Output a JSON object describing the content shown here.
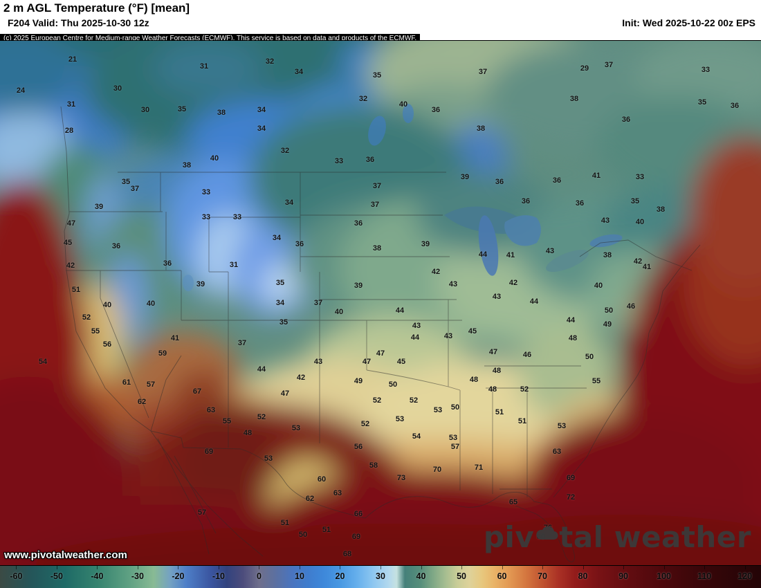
{
  "header": {
    "title": "2 m AGL Temperature (°F) [mean]",
    "valid": "F204 Valid: Thu 2025-10-30 12z",
    "init": "Init: Wed 2025-10-22 00z EPS"
  },
  "copyright": "(c) 2025 European Centre for Medium-range Weather Forecasts (ECMWF). This service is based on data and products of the ECMWF.",
  "watermark": "www.pivotalweather.com",
  "logo": {
    "pre": "piv",
    "post": "tal weather"
  },
  "map": {
    "labels": [
      [
        21,
        105,
        27
      ],
      [
        31,
        295,
        37
      ],
      [
        32,
        390,
        30
      ],
      [
        34,
        432,
        45
      ],
      [
        35,
        545,
        50
      ],
      [
        37,
        698,
        45
      ],
      [
        29,
        845,
        40
      ],
      [
        37,
        880,
        35
      ],
      [
        33,
        1020,
        42
      ],
      [
        24,
        30,
        72
      ],
      [
        30,
        170,
        69
      ],
      [
        31,
        103,
        92
      ],
      [
        30,
        210,
        100
      ],
      [
        35,
        263,
        99
      ],
      [
        38,
        320,
        104
      ],
      [
        34,
        378,
        100
      ],
      [
        32,
        525,
        84
      ],
      [
        40,
        583,
        92
      ],
      [
        36,
        630,
        100
      ],
      [
        38,
        830,
        84
      ],
      [
        35,
        1015,
        89
      ],
      [
        36,
        1062,
        94
      ],
      [
        28,
        100,
        130
      ],
      [
        34,
        378,
        127
      ],
      [
        38,
        695,
        127
      ],
      [
        36,
        905,
        114
      ],
      [
        32,
        412,
        159
      ],
      [
        40,
        310,
        170
      ],
      [
        38,
        270,
        180
      ],
      [
        33,
        490,
        174
      ],
      [
        36,
        535,
        172
      ],
      [
        37,
        545,
        210
      ],
      [
        39,
        672,
        197
      ],
      [
        36,
        722,
        204
      ],
      [
        36,
        805,
        202
      ],
      [
        41,
        862,
        195
      ],
      [
        33,
        925,
        197
      ],
      [
        35,
        182,
        204
      ],
      [
        37,
        195,
        214
      ],
      [
        33,
        298,
        219
      ],
      [
        39,
        143,
        240
      ],
      [
        34,
        418,
        234
      ],
      [
        37,
        542,
        237
      ],
      [
        36,
        760,
        232
      ],
      [
        36,
        838,
        235
      ],
      [
        35,
        918,
        232
      ],
      [
        38,
        955,
        244
      ],
      [
        47,
        103,
        264
      ],
      [
        33,
        298,
        255
      ],
      [
        33,
        343,
        255
      ],
      [
        36,
        518,
        264
      ],
      [
        43,
        875,
        260
      ],
      [
        40,
        925,
        262
      ],
      [
        45,
        98,
        292
      ],
      [
        36,
        168,
        297
      ],
      [
        34,
        400,
        285
      ],
      [
        36,
        433,
        294
      ],
      [
        38,
        545,
        300
      ],
      [
        39,
        615,
        294
      ],
      [
        44,
        698,
        309
      ],
      [
        41,
        738,
        310
      ],
      [
        43,
        795,
        304
      ],
      [
        38,
        878,
        310
      ],
      [
        42,
        922,
        319
      ],
      [
        42,
        102,
        325
      ],
      [
        36,
        242,
        322
      ],
      [
        31,
        338,
        324
      ],
      [
        42,
        630,
        334
      ],
      [
        43,
        655,
        352
      ],
      [
        42,
        742,
        350
      ],
      [
        39,
        290,
        352
      ],
      [
        35,
        405,
        350
      ],
      [
        39,
        518,
        354
      ],
      [
        43,
        718,
        370
      ],
      [
        44,
        772,
        377
      ],
      [
        40,
        865,
        354
      ],
      [
        41,
        935,
        327
      ],
      [
        51,
        110,
        360
      ],
      [
        40,
        155,
        382
      ],
      [
        40,
        218,
        380
      ],
      [
        34,
        405,
        379
      ],
      [
        37,
        460,
        379
      ],
      [
        52,
        125,
        400
      ],
      [
        44,
        578,
        390
      ],
      [
        43,
        602,
        412
      ],
      [
        35,
        410,
        407
      ],
      [
        40,
        490,
        392
      ],
      [
        50,
        880,
        390
      ],
      [
        46,
        912,
        384
      ],
      [
        49,
        878,
        410
      ],
      [
        44,
        825,
        404
      ],
      [
        55,
        138,
        420
      ],
      [
        41,
        253,
        430
      ],
      [
        37,
        350,
        437
      ],
      [
        44,
        600,
        429
      ],
      [
        43,
        648,
        427
      ],
      [
        45,
        683,
        420
      ],
      [
        47,
        713,
        450
      ],
      [
        46,
        762,
        454
      ],
      [
        48,
        828,
        430
      ],
      [
        50,
        852,
        457
      ],
      [
        56,
        155,
        439
      ],
      [
        59,
        235,
        452
      ],
      [
        43,
        460,
        464
      ],
      [
        47,
        530,
        464
      ],
      [
        47,
        550,
        452
      ],
      [
        45,
        580,
        464
      ],
      [
        44,
        378,
        475
      ],
      [
        42,
        435,
        487
      ],
      [
        48,
        718,
        477
      ],
      [
        54,
        62,
        464
      ],
      [
        61,
        183,
        494
      ],
      [
        57,
        218,
        497
      ],
      [
        49,
        518,
        492
      ],
      [
        50,
        568,
        497
      ],
      [
        48,
        685,
        490
      ],
      [
        48,
        712,
        504
      ],
      [
        52,
        758,
        504
      ],
      [
        55,
        862,
        492
      ],
      [
        67,
        285,
        507
      ],
      [
        47,
        412,
        510
      ],
      [
        52,
        598,
        520
      ],
      [
        52,
        545,
        520
      ],
      [
        53,
        633,
        534
      ],
      [
        50,
        658,
        530
      ],
      [
        51,
        722,
        537
      ],
      [
        62,
        205,
        522
      ],
      [
        63,
        305,
        534
      ],
      [
        55,
        328,
        550
      ],
      [
        52,
        378,
        544
      ],
      [
        51,
        755,
        550
      ],
      [
        53,
        812,
        557
      ],
      [
        48,
        358,
        567
      ],
      [
        53,
        428,
        560
      ],
      [
        52,
        528,
        554
      ],
      [
        53,
        578,
        547
      ],
      [
        54,
        602,
        572
      ],
      [
        53,
        655,
        574
      ],
      [
        57,
        658,
        587
      ],
      [
        63,
        805,
        594
      ],
      [
        69,
        302,
        594
      ],
      [
        53,
        388,
        604
      ],
      [
        56,
        518,
        587
      ],
      [
        58,
        540,
        614
      ],
      [
        73,
        580,
        632
      ],
      [
        70,
        632,
        620
      ],
      [
        71,
        692,
        617
      ],
      [
        60,
        465,
        634
      ],
      [
        63,
        488,
        654
      ],
      [
        62,
        448,
        662
      ],
      [
        57,
        292,
        682
      ],
      [
        66,
        518,
        684
      ],
      [
        69,
        825,
        632
      ],
      [
        72,
        825,
        660
      ],
      [
        65,
        742,
        667
      ],
      [
        76,
        792,
        704
      ],
      [
        80,
        782,
        717
      ],
      [
        51,
        412,
        697
      ],
      [
        50,
        438,
        714
      ],
      [
        51,
        472,
        707
      ],
      [
        69,
        515,
        717
      ],
      [
        68,
        502,
        742
      ]
    ]
  },
  "colorbar": {
    "min": -64,
    "max": 124,
    "ticks": [
      -60,
      -50,
      -40,
      -30,
      -20,
      -10,
      0,
      10,
      20,
      30,
      40,
      50,
      60,
      70,
      80,
      90,
      100,
      110,
      120
    ],
    "stops": [
      [
        -64,
        "#3b4a44"
      ],
      [
        -56,
        "#24565a"
      ],
      [
        -48,
        "#1e6a66"
      ],
      [
        -40,
        "#35836f"
      ],
      [
        -32,
        "#5fa183"
      ],
      [
        -26,
        "#88ba94"
      ],
      [
        -22,
        "#74a2c2"
      ],
      [
        -18,
        "#4e7fc8"
      ],
      [
        -12,
        "#3a55a0"
      ],
      [
        -8,
        "#32437e"
      ],
      [
        -4,
        "#4c4c7c"
      ],
      [
        0,
        "#6f6f8c"
      ],
      [
        4,
        "#5c70a0"
      ],
      [
        8,
        "#4a74be"
      ],
      [
        12,
        "#3f7ccd"
      ],
      [
        16,
        "#3e88da"
      ],
      [
        20,
        "#4898e2"
      ],
      [
        24,
        "#64aeec"
      ],
      [
        28,
        "#8cc6f0"
      ],
      [
        32,
        "#b2d8ee"
      ],
      [
        34,
        "#c6e2e0"
      ],
      [
        36,
        "#45807a"
      ],
      [
        40,
        "#578f7b"
      ],
      [
        43,
        "#7fa886"
      ],
      [
        46,
        "#a5bd90"
      ],
      [
        49,
        "#c9cd97"
      ],
      [
        52,
        "#ded29a"
      ],
      [
        55,
        "#e7c87e"
      ],
      [
        58,
        "#e9b468"
      ],
      [
        62,
        "#e29752"
      ],
      [
        66,
        "#d4763f"
      ],
      [
        70,
        "#c05330"
      ],
      [
        74,
        "#aa3125"
      ],
      [
        78,
        "#931c1b"
      ],
      [
        84,
        "#781215"
      ],
      [
        92,
        "#600c10"
      ],
      [
        100,
        "#4c080c"
      ],
      [
        110,
        "#370609"
      ],
      [
        120,
        "#290507"
      ],
      [
        124,
        "#230406"
      ]
    ]
  }
}
